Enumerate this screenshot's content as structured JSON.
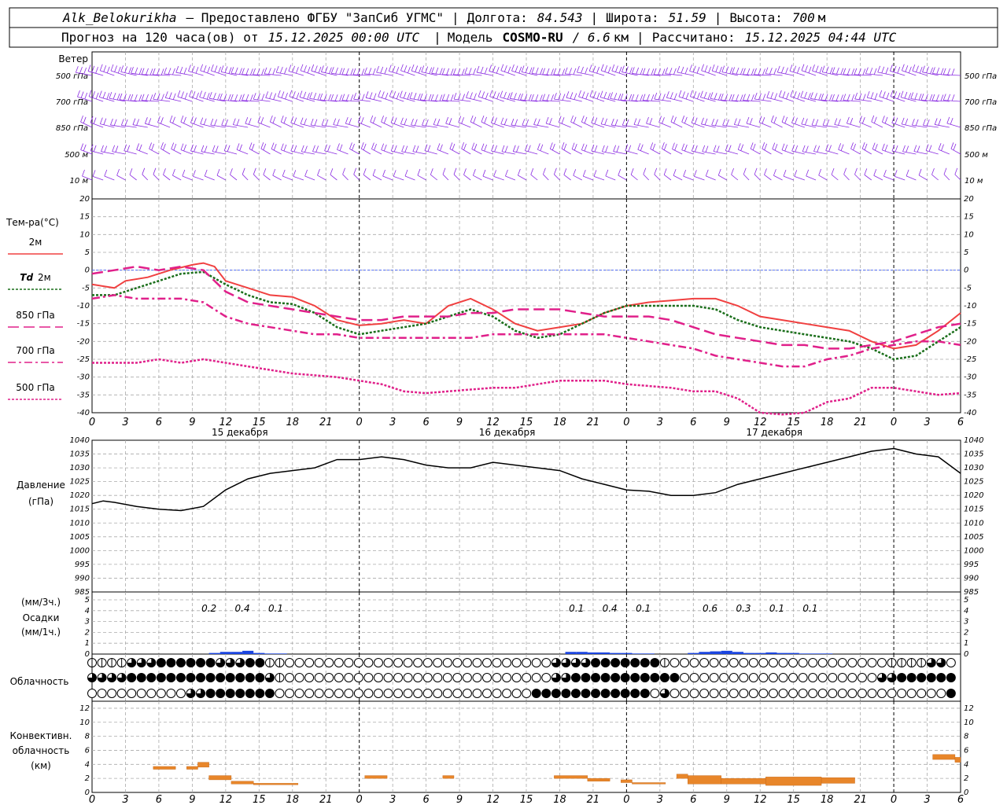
{
  "header": {
    "station": "Alk_Belokurikha",
    "provider": "– Предоставлено ФГБУ \"ЗапСиб УГМС\"",
    "lon_label": "Долгота:",
    "lon_value": "84.543",
    "lat_label": "Широта:",
    "lat_value": "51.59",
    "alt_label": "Высота:",
    "alt_value": "700",
    "alt_unit": "м",
    "forecast_prefix": "Прогноз на 120 часа(ов) от",
    "forecast_start": "15.12.2025 00:00 UTC",
    "model_label": "Модель",
    "model_name": "COSMO-RU",
    "model_res": "/ 6.6",
    "model_res_unit": "км",
    "computed_label": "Рассчитано:",
    "computed_value": "15.12.2025 04:44 UTC"
  },
  "panels": {
    "wind": {
      "title": "Ветер",
      "levels": [
        "500 гПа",
        "700 гПа",
        "850 гПа",
        "500 м",
        "10 м"
      ],
      "color": "#8a2be2"
    },
    "temperature": {
      "title": "Тем-ра(°С)",
      "legend": [
        {
          "name": "2м",
          "color": "#f04040",
          "dash": ""
        },
        {
          "name": "Td 2м",
          "prefix": "Td",
          "suffix": "2м",
          "color": "#1a6e1a",
          "dash": "3 2"
        },
        {
          "name": "850 гПа",
          "color": "#e0208a",
          "dash": "14 6"
        },
        {
          "name": "700 гПа",
          "color": "#e0208a",
          "dash": "10 4 3 4"
        },
        {
          "name": "500 гПа",
          "color": "#e0208a",
          "dash": "3 2"
        }
      ],
      "dates": [
        "15 декабря",
        "16 декабря",
        "17 декабря"
      ]
    },
    "pressure": {
      "title": "Давление",
      "unit": "(гПа)"
    },
    "precip": {
      "unit_top": "(мм/3ч.)",
      "title": "Осадки",
      "unit_bottom": "(мм/1ч.)",
      "labels": [
        {
          "hour": 10.5,
          "text": "0.2"
        },
        {
          "hour": 13.5,
          "text": "0.4"
        },
        {
          "hour": 16.5,
          "text": "0.1"
        },
        {
          "hour": 43.5,
          "text": "0.1"
        },
        {
          "hour": 46.5,
          "text": "0.4"
        },
        {
          "hour": 49.5,
          "text": "0.1"
        },
        {
          "hour": 55.5,
          "text": "0.6"
        },
        {
          "hour": 58.5,
          "text": "0.3"
        },
        {
          "hour": 61.5,
          "text": "0.1"
        },
        {
          "hour": 64.5,
          "text": "0.1"
        }
      ]
    },
    "clouds": {
      "title": "Облачность"
    },
    "convective": {
      "title1": "Конвективн.",
      "title2": "облачность",
      "unit": "(км)"
    }
  },
  "x_ticks": [
    "0",
    "3",
    "6",
    "9",
    "12",
    "15",
    "18",
    "21",
    "0",
    "3",
    "6",
    "9",
    "12",
    "15",
    "18",
    "21",
    "0",
    "3",
    "6",
    "9",
    "12",
    "15",
    "18",
    "21",
    "0",
    "3",
    "6"
  ],
  "chart_data": [
    {
      "type": "line",
      "name": "temperature",
      "x_unit": "hours since 15.12.2025 00:00 UTC",
      "ylim": [
        -40,
        20
      ],
      "yticks": [
        20,
        15,
        10,
        5,
        0,
        -5,
        -10,
        -15,
        -20,
        -25,
        -30,
        -35,
        -40
      ],
      "series": [
        {
          "name": "2м",
          "x": [
            0,
            2,
            3,
            5,
            7,
            9,
            10,
            11,
            12,
            14,
            16,
            18,
            20,
            22,
            24,
            26,
            28,
            30,
            32,
            34,
            36,
            38,
            40,
            42,
            44,
            46,
            48,
            50,
            52,
            54,
            56,
            58,
            60,
            62,
            64,
            66,
            68,
            70,
            72,
            74,
            76,
            78
          ],
          "values": [
            -4,
            -5,
            -3,
            -2,
            0,
            1.5,
            2,
            1,
            -3,
            -5,
            -7,
            -7.5,
            -10,
            -14,
            -15.5,
            -15,
            -14,
            -15,
            -10,
            -8,
            -11,
            -15,
            -17,
            -16,
            -15,
            -12,
            -10,
            -9,
            -8.5,
            -8,
            -8,
            -10,
            -13,
            -14,
            -15,
            -16,
            -17,
            -20,
            -22,
            -21,
            -17,
            -12
          ]
        },
        {
          "name": "Td 2м",
          "x": [
            0,
            2,
            4,
            6,
            8,
            10,
            12,
            14,
            16,
            18,
            20,
            22,
            24,
            26,
            28,
            30,
            32,
            34,
            36,
            38,
            40,
            42,
            44,
            46,
            48,
            50,
            52,
            54,
            56,
            58,
            60,
            62,
            64,
            66,
            68,
            70,
            72,
            74,
            76,
            78
          ],
          "values": [
            -7,
            -7,
            -5,
            -3,
            -1,
            -0.5,
            -4,
            -7,
            -9,
            -9.5,
            -12,
            -16,
            -18,
            -17,
            -16,
            -15,
            -13,
            -11,
            -13,
            -17,
            -19,
            -18,
            -15,
            -12,
            -10,
            -10,
            -10,
            -10,
            -11,
            -14,
            -16,
            -17,
            -18,
            -19,
            -20,
            -22,
            -25,
            -24,
            -20,
            -16
          ]
        },
        {
          "name": "850 гПа",
          "x": [
            0,
            2,
            4,
            6,
            8,
            10,
            12,
            14,
            16,
            18,
            20,
            22,
            24,
            26,
            28,
            30,
            32,
            34,
            36,
            38,
            40,
            42,
            44,
            46,
            48,
            50,
            52,
            54,
            56,
            58,
            60,
            62,
            64,
            66,
            68,
            70,
            72,
            74,
            76,
            78
          ],
          "values": [
            -1,
            0,
            1,
            0,
            1,
            0,
            -6,
            -9,
            -10,
            -11,
            -12,
            -13,
            -14,
            -14,
            -13,
            -13,
            -13,
            -12,
            -12,
            -11,
            -11,
            -11,
            -12,
            -13,
            -13,
            -13,
            -14,
            -16,
            -18,
            -19,
            -20,
            -21,
            -21,
            -22,
            -22,
            -21,
            -20,
            -18,
            -16,
            -15
          ]
        },
        {
          "name": "700 гПа",
          "x": [
            0,
            2,
            4,
            6,
            8,
            10,
            12,
            14,
            16,
            18,
            20,
            22,
            24,
            26,
            28,
            30,
            32,
            34,
            36,
            38,
            40,
            42,
            44,
            46,
            48,
            50,
            52,
            54,
            56,
            58,
            60,
            62,
            64,
            66,
            68,
            70,
            72,
            74,
            76,
            78
          ],
          "values": [
            -8,
            -7,
            -8,
            -8,
            -8,
            -9,
            -13,
            -15,
            -16,
            -17,
            -18,
            -18,
            -19,
            -19,
            -19,
            -19,
            -19,
            -19,
            -18,
            -18,
            -18,
            -18,
            -18,
            -18,
            -19,
            -20,
            -21,
            -22,
            -24,
            -25,
            -26,
            -27,
            -27,
            -25,
            -24,
            -22,
            -21,
            -20,
            -20,
            -21
          ]
        },
        {
          "name": "500 гПа",
          "x": [
            0,
            2,
            4,
            6,
            8,
            10,
            12,
            14,
            16,
            18,
            20,
            22,
            24,
            26,
            28,
            30,
            32,
            34,
            36,
            38,
            40,
            42,
            44,
            46,
            48,
            50,
            52,
            54,
            56,
            58,
            60,
            62,
            64,
            66,
            68,
            70,
            72,
            74,
            76,
            78
          ],
          "values": [
            -26,
            -26,
            -26,
            -25,
            -26,
            -25,
            -26,
            -27,
            -28,
            -29,
            -29.5,
            -30,
            -31,
            -32,
            -34,
            -34.5,
            -34,
            -33.5,
            -33,
            -33,
            -32,
            -31,
            -31,
            -31,
            -32,
            -32.5,
            -33,
            -34,
            -34,
            -36,
            -40,
            -40.5,
            -40,
            -37,
            -36,
            -33,
            -33,
            -34,
            -35,
            -34.5
          ]
        }
      ]
    },
    {
      "type": "line",
      "name": "pressure",
      "x_unit": "hours since 15.12.2025 00:00 UTC",
      "ylim": [
        985,
        1040
      ],
      "yticks": [
        1040,
        1035,
        1030,
        1025,
        1020,
        1015,
        1010,
        1005,
        1000,
        995,
        990,
        985
      ],
      "series": [
        {
          "name": "Давление",
          "x": [
            0,
            1,
            2,
            4,
            6,
            8,
            10,
            12,
            14,
            16,
            18,
            20,
            22,
            24,
            26,
            28,
            30,
            32,
            34,
            36,
            38,
            40,
            42,
            44,
            46,
            48,
            50,
            52,
            54,
            56,
            58,
            60,
            62,
            64,
            66,
            68,
            70,
            72,
            74,
            76,
            78
          ],
          "values": [
            1017,
            1018,
            1017.5,
            1016,
            1015,
            1014.5,
            1016,
            1022,
            1026,
            1028,
            1029,
            1030,
            1033,
            1033,
            1034,
            1033,
            1031,
            1030,
            1030,
            1032,
            1031,
            1030,
            1029,
            1026,
            1024,
            1022,
            1021.5,
            1020,
            1020,
            1021,
            1024,
            1026,
            1028,
            1030,
            1032,
            1034,
            1036,
            1037,
            1035,
            1034,
            1028
          ]
        }
      ]
    },
    {
      "type": "bar",
      "name": "precipitation",
      "ylim": [
        0,
        5
      ],
      "yticks": [
        5,
        4,
        3,
        2,
        1,
        0
      ],
      "x": [
        11,
        12,
        13,
        14,
        15,
        16,
        17,
        43,
        44,
        45,
        46,
        47,
        48,
        49,
        50,
        54,
        55,
        56,
        57,
        58,
        59,
        60,
        61,
        62,
        63,
        64,
        65,
        66
      ],
      "values": [
        0.1,
        0.2,
        0.2,
        0.3,
        0.1,
        0.05,
        0.05,
        0.2,
        0.2,
        0.15,
        0.15,
        0.1,
        0.1,
        0.05,
        0.05,
        0.1,
        0.2,
        0.25,
        0.3,
        0.2,
        0.1,
        0.1,
        0.15,
        0.1,
        0.1,
        0.05,
        0.05,
        0.05
      ],
      "color": "#1a44e0"
    },
    {
      "type": "bar",
      "name": "convective",
      "ylim": [
        0,
        13
      ],
      "yticks": [
        12,
        10,
        8,
        6,
        4,
        2,
        0
      ],
      "segments": [
        {
          "x0": 5.5,
          "x1": 7.5,
          "bottom": 3.3,
          "top": 3.7
        },
        {
          "x0": 8.5,
          "x1": 9.5,
          "bottom": 3.3,
          "top": 3.7
        },
        {
          "x0": 9.5,
          "x1": 10.5,
          "bottom": 3.6,
          "top": 4.3
        },
        {
          "x0": 10.5,
          "x1": 12.5,
          "bottom": 1.8,
          "top": 2.4
        },
        {
          "x0": 12.5,
          "x1": 14.5,
          "bottom": 1.2,
          "top": 1.6
        },
        {
          "x0": 14.5,
          "x1": 18.5,
          "bottom": 1.1,
          "top": 1.3
        },
        {
          "x0": 24.5,
          "x1": 26.5,
          "bottom": 2.0,
          "top": 2.4
        },
        {
          "x0": 31.5,
          "x1": 32.5,
          "bottom": 2.0,
          "top": 2.4
        },
        {
          "x0": 41.5,
          "x1": 44.5,
          "bottom": 2.0,
          "top": 2.4
        },
        {
          "x0": 44.5,
          "x1": 46.5,
          "bottom": 1.6,
          "top": 2.0
        },
        {
          "x0": 47.5,
          "x1": 48.5,
          "bottom": 1.4,
          "top": 1.8
        },
        {
          "x0": 48.5,
          "x1": 51.5,
          "bottom": 1.2,
          "top": 1.4
        },
        {
          "x0": 52.5,
          "x1": 53.5,
          "bottom": 2.0,
          "top": 2.6
        },
        {
          "x0": 53.5,
          "x1": 56.5,
          "bottom": 1.2,
          "top": 2.4
        },
        {
          "x0": 56.5,
          "x1": 60.5,
          "bottom": 1.2,
          "top": 2.0
        },
        {
          "x0": 60.5,
          "x1": 65.5,
          "bottom": 1.0,
          "top": 2.2
        },
        {
          "x0": 65.5,
          "x1": 68.5,
          "bottom": 1.3,
          "top": 2.1
        },
        {
          "x0": 75.5,
          "x1": 77.5,
          "bottom": 4.7,
          "top": 5.4
        },
        {
          "x0": 77.5,
          "x1": 78,
          "bottom": 4.3,
          "top": 5.0
        }
      ],
      "color": "#e8862a"
    }
  ],
  "clouds_rows": [
    "1111222333333222331100000000000000000000000000022223333333100000000000000000000001111220",
    "2222333333333333332100000000000000000000000000022333333333330000000000000000000022333333",
    "0000000000223333333000000000000000000000000003333333333330200000000000000000000000000003"
  ],
  "wind_rows": [
    {
      "level": "500 гПа",
      "dirs": "wnw",
      "speeds": "strong"
    },
    {
      "level": "700 гПа",
      "dirs": "wnw",
      "speeds": "strong"
    },
    {
      "level": "850 гПа",
      "dirs": "w",
      "speeds": "moderate"
    },
    {
      "level": "500 м",
      "dirs": "w",
      "speeds": "moderate"
    },
    {
      "level": "10 м",
      "dirs": "sw",
      "speeds": "light"
    }
  ]
}
